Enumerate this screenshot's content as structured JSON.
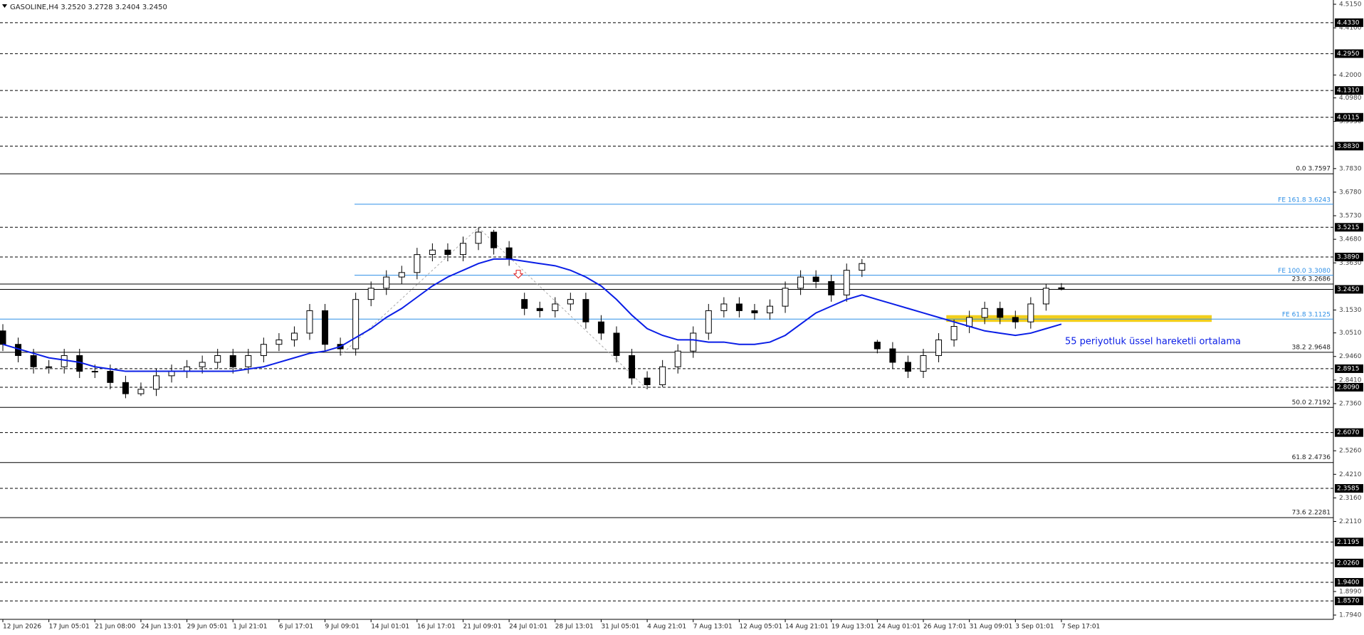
{
  "chart_data": {
    "type": "candlestick",
    "title": "GASOLINE,H4  3.2520 3.2728 3.2404 3.2450",
    "annotation": "55 periyotluk üssel hareketli ortalama",
    "ylim": [
      1.775,
      4.534
    ],
    "yticks": [
      {
        "value": 4.515,
        "label": "4.5150"
      },
      {
        "value": 4.41,
        "label": "4.4100"
      },
      {
        "value": 4.2,
        "label": "4.2000"
      },
      {
        "value": 4.098,
        "label": "4.0980"
      },
      {
        "value": 3.993,
        "label": "3.9930"
      },
      {
        "value": 3.783,
        "label": "3.7830"
      },
      {
        "value": 3.678,
        "label": "3.6780"
      },
      {
        "value": 3.573,
        "label": "3.5730"
      },
      {
        "value": 3.468,
        "label": "3.4680"
      },
      {
        "value": 3.363,
        "label": "3.3630"
      },
      {
        "value": 3.153,
        "label": "3.1530"
      },
      {
        "value": 3.051,
        "label": "3.0510"
      },
      {
        "value": 2.946,
        "label": "2.9460"
      },
      {
        "value": 2.841,
        "label": "2.8410"
      },
      {
        "value": 2.736,
        "label": "2.7360"
      },
      {
        "value": 2.526,
        "label": "2.5260"
      },
      {
        "value": 2.421,
        "label": "2.4210"
      },
      {
        "value": 2.316,
        "label": "2.3160"
      },
      {
        "value": 2.211,
        "label": "2.2110"
      },
      {
        "value": 1.899,
        "label": "1.8990"
      },
      {
        "value": 1.794,
        "label": "1.7940"
      }
    ],
    "xticks": [
      {
        "value": 0,
        "label": "12 Jun 2026"
      },
      {
        "value": 3,
        "label": "17 Jun 05:01"
      },
      {
        "value": 6,
        "label": "21 Jun 08:00"
      },
      {
        "value": 9,
        "label": "24 Jun 13:01"
      },
      {
        "value": 12,
        "label": "29 Jun 05:01"
      },
      {
        "value": 15,
        "label": "1 Jul 21:01"
      },
      {
        "value": 18,
        "label": "6 Jul 17:01"
      },
      {
        "value": 21,
        "label": "9 Jul 09:01"
      },
      {
        "value": 24,
        "label": "14 Jul 01:01"
      },
      {
        "value": 27,
        "label": "16 Jul 17:01"
      },
      {
        "value": 30,
        "label": "21 Jul 09:01"
      },
      {
        "value": 33,
        "label": "24 Jul 01:01"
      },
      {
        "value": 36,
        "label": "28 Jul 13:01"
      },
      {
        "value": 39,
        "label": "31 Jul 05:01"
      },
      {
        "value": 42,
        "label": "4 Aug 21:01"
      },
      {
        "value": 45,
        "label": "7 Aug 13:01"
      },
      {
        "value": 48,
        "label": "12 Aug 05:01"
      },
      {
        "value": 51,
        "label": "14 Aug 21:01"
      },
      {
        "value": 54,
        "label": "19 Aug 13:01"
      },
      {
        "value": 57,
        "label": "24 Aug 01:01"
      },
      {
        "value": 60,
        "label": "26 Aug 17:01"
      },
      {
        "value": 63,
        "label": "31 Aug 09:01"
      },
      {
        "value": 66,
        "label": "3 Sep 01:01"
      },
      {
        "value": 69,
        "label": "7 Sep 17:01"
      }
    ],
    "open": [
      3.06,
      3.0,
      2.95,
      2.9,
      2.9,
      2.95,
      2.88,
      2.88,
      2.83,
      2.78,
      2.8,
      2.86,
      2.88,
      2.9,
      2.92,
      2.95,
      2.9,
      2.95,
      3.0,
      3.02,
      3.05,
      3.15,
      3.0,
      2.98,
      3.2,
      3.25,
      3.3,
      3.32,
      3.4,
      3.42,
      3.4,
      3.45,
      3.5,
      3.43,
      3.2,
      3.16,
      3.15,
      3.18,
      3.2,
      3.1,
      3.05,
      2.95,
      2.85,
      2.82,
      2.9,
      2.97,
      3.05,
      3.15,
      3.18,
      3.15,
      3.14,
      3.17,
      3.25,
      3.3,
      3.28,
      3.22,
      3.33,
      3.01,
      2.98,
      2.92,
      2.88,
      2.95,
      3.02,
      3.08,
      3.12,
      3.16,
      3.12,
      3.1,
      3.18,
      3.252
    ],
    "high": [
      3.09,
      3.03,
      2.98,
      2.93,
      2.98,
      2.98,
      2.91,
      2.91,
      2.86,
      2.83,
      2.89,
      2.91,
      2.93,
      2.95,
      2.98,
      2.98,
      2.98,
      3.03,
      3.05,
      3.08,
      3.18,
      3.18,
      3.03,
      3.23,
      3.28,
      3.33,
      3.35,
      3.43,
      3.45,
      3.45,
      3.48,
      3.52,
      3.51,
      3.46,
      3.23,
      3.19,
      3.21,
      3.23,
      3.23,
      3.13,
      3.08,
      2.98,
      2.88,
      2.93,
      3.0,
      3.08,
      3.18,
      3.21,
      3.21,
      3.18,
      3.2,
      3.28,
      3.33,
      3.33,
      3.31,
      3.36,
      3.38,
      3.02,
      3.01,
      2.95,
      2.98,
      3.05,
      3.11,
      3.15,
      3.19,
      3.19,
      3.15,
      3.21,
      3.27,
      3.2728
    ],
    "low": [
      2.97,
      2.92,
      2.87,
      2.87,
      2.87,
      2.85,
      2.85,
      2.8,
      2.76,
      2.77,
      2.77,
      2.83,
      2.85,
      2.87,
      2.89,
      2.87,
      2.87,
      2.92,
      2.97,
      2.99,
      3.02,
      2.97,
      2.95,
      2.95,
      3.17,
      3.22,
      3.27,
      3.29,
      3.37,
      3.37,
      3.37,
      3.42,
      3.4,
      3.35,
      3.13,
      3.12,
      3.12,
      3.15,
      3.07,
      3.02,
      2.92,
      2.82,
      2.8,
      2.81,
      2.87,
      2.94,
      3.02,
      3.12,
      3.12,
      3.11,
      3.11,
      3.14,
      3.22,
      3.25,
      3.19,
      3.19,
      3.3,
      2.96,
      2.89,
      2.85,
      2.85,
      2.92,
      2.99,
      3.05,
      3.09,
      3.09,
      3.07,
      3.07,
      3.15,
      3.2404
    ],
    "close": [
      3.0,
      2.95,
      2.9,
      2.9,
      2.95,
      2.88,
      2.88,
      2.83,
      2.78,
      2.8,
      2.86,
      2.88,
      2.9,
      2.92,
      2.95,
      2.9,
      2.95,
      3.0,
      3.02,
      3.05,
      3.15,
      3.0,
      2.98,
      3.2,
      3.25,
      3.3,
      3.32,
      3.4,
      3.42,
      3.4,
      3.45,
      3.5,
      3.43,
      3.38,
      3.16,
      3.15,
      3.18,
      3.2,
      3.1,
      3.05,
      2.95,
      2.85,
      2.82,
      2.9,
      2.97,
      3.05,
      3.15,
      3.18,
      3.15,
      3.14,
      3.17,
      3.25,
      3.3,
      3.28,
      3.22,
      3.33,
      3.36,
      2.98,
      2.92,
      2.88,
      2.95,
      3.02,
      3.08,
      3.12,
      3.16,
      3.12,
      3.1,
      3.18,
      3.25,
      3.245
    ],
    "ema": {
      "color": "#0a1ee6",
      "values": [
        3.0,
        2.98,
        2.96,
        2.94,
        2.93,
        2.92,
        2.9,
        2.89,
        2.88,
        2.88,
        2.88,
        2.88,
        2.88,
        2.88,
        2.88,
        2.88,
        2.89,
        2.9,
        2.92,
        2.94,
        2.96,
        2.97,
        2.99,
        3.03,
        3.07,
        3.12,
        3.16,
        3.21,
        3.26,
        3.3,
        3.33,
        3.36,
        3.38,
        3.38,
        3.37,
        3.36,
        3.35,
        3.33,
        3.3,
        3.26,
        3.2,
        3.13,
        3.07,
        3.04,
        3.02,
        3.02,
        3.01,
        3.01,
        3.0,
        3.0,
        3.01,
        3.04,
        3.09,
        3.14,
        3.17,
        3.2,
        3.22,
        3.2,
        3.18,
        3.16,
        3.14,
        3.12,
        3.1,
        3.08,
        3.06,
        3.05,
        3.04,
        3.05,
        3.07,
        3.09
      ]
    },
    "levels": [
      {
        "value": 4.433,
        "label": "4.4330"
      },
      {
        "value": 4.295,
        "label": "4.2950"
      },
      {
        "value": 4.131,
        "label": "4.1310"
      },
      {
        "value": 4.0115,
        "label": "4.0115"
      },
      {
        "value": 3.883,
        "label": "3.8830"
      },
      {
        "value": 3.5215,
        "label": "3.5215"
      },
      {
        "value": 3.389,
        "label": "3.3890"
      },
      {
        "value": 2.8915,
        "label": "2.8915"
      },
      {
        "value": 2.809,
        "label": "2.8090"
      },
      {
        "value": 2.607,
        "label": "2.6070"
      },
      {
        "value": 2.3585,
        "label": "2.3585"
      },
      {
        "value": 2.1195,
        "label": "2.1195"
      },
      {
        "value": 2.026,
        "label": "2.0260"
      },
      {
        "value": 1.94,
        "label": "1.9400"
      },
      {
        "value": 1.857,
        "label": "1.8570"
      }
    ],
    "price_line": {
      "value": 3.245,
      "label": "3.2450"
    },
    "fib_levels": [
      {
        "value": 3.7597,
        "label": "0.0 3.7597"
      },
      {
        "value": 3.2686,
        "label": "23.6 3.2686"
      },
      {
        "value": 2.9648,
        "label": "38.2 2.9648"
      },
      {
        "value": 2.7192,
        "label": "50.0 2.7192"
      },
      {
        "value": 2.4736,
        "label": "61.8 2.4736"
      },
      {
        "value": 2.2281,
        "label": "73.6 2.2281"
      }
    ],
    "fe_color": "#2e8fe6",
    "fe_levels": [
      {
        "value": 3.6243,
        "label": "FE 161.8 3.6243"
      },
      {
        "value": 3.308,
        "label": "FE 100.0 3.3080"
      },
      {
        "value": 3.1125,
        "label": "FE 61.8 3.1125"
      }
    ],
    "zone": {
      "range": [
        3.1,
        3.13
      ],
      "color": "#f2cf1d"
    }
  }
}
